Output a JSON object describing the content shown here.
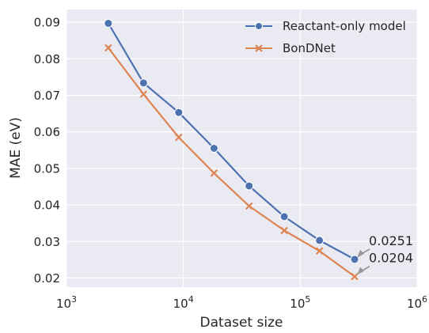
{
  "chart_data": {
    "type": "line",
    "xlabel": "Dataset size",
    "ylabel": "MAE (eV)",
    "xscale": "log",
    "xlim": [
      1000,
      1000000
    ],
    "ylim": [
      0.0175,
      0.0935
    ],
    "x_ticks": [
      {
        "value": 1000,
        "base": "10",
        "exp": "3"
      },
      {
        "value": 10000,
        "base": "10",
        "exp": "4"
      },
      {
        "value": 100000,
        "base": "10",
        "exp": "5"
      },
      {
        "value": 1000000,
        "base": "10",
        "exp": "6"
      }
    ],
    "y_ticks": [
      {
        "value": 0.02,
        "label": "0.02"
      },
      {
        "value": 0.03,
        "label": "0.03"
      },
      {
        "value": 0.04,
        "label": "0.04"
      },
      {
        "value": 0.05,
        "label": "0.05"
      },
      {
        "value": 0.06,
        "label": "0.06"
      },
      {
        "value": 0.07,
        "label": "0.07"
      },
      {
        "value": 0.08,
        "label": "0.08"
      },
      {
        "value": 0.09,
        "label": "0.09"
      }
    ],
    "grid": true,
    "legend_position": "top-right",
    "series": [
      {
        "name": "Reactant-only model",
        "color": "#4c72b0",
        "marker": "circle",
        "x": [
          2280,
          4560,
          9130,
          18300,
          36500,
          73000,
          146000,
          292000
        ],
        "y": [
          0.0897,
          0.0734,
          0.0653,
          0.0555,
          0.0452,
          0.0368,
          0.0303,
          0.0251
        ]
      },
      {
        "name": "BonDNet",
        "color": "#dd8452",
        "marker": "x",
        "x": [
          2280,
          4560,
          9130,
          18300,
          36500,
          73000,
          146000,
          292000
        ],
        "y": [
          0.083,
          0.0703,
          0.0585,
          0.0487,
          0.0397,
          0.033,
          0.0274,
          0.0204
        ]
      }
    ],
    "annotations": [
      {
        "text": "0.0251",
        "series": 0,
        "point": 7
      },
      {
        "text": "0.0204",
        "series": 1,
        "point": 7
      }
    ]
  }
}
